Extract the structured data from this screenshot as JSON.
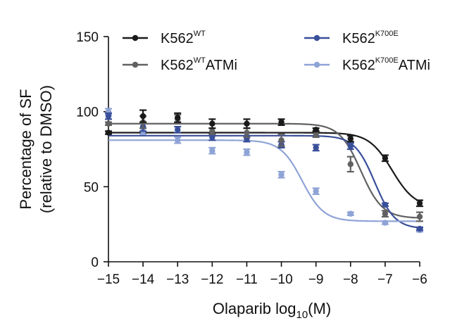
{
  "chart_data": {
    "type": "line",
    "subtype": "dose-response with data points and error bars",
    "title": "",
    "xlabel": {
      "main": "Olaparib log",
      "sub": "10",
      "tail": "(M)"
    },
    "ylabel": {
      "line1": "Percentage of SF",
      "line2": "(relative to DMSO)"
    },
    "xlim": [
      -15,
      -6
    ],
    "ylim": [
      0,
      150
    ],
    "x_ticks": [
      -15,
      -14,
      -13,
      -12,
      -11,
      -10,
      -9,
      -8,
      -7,
      -6
    ],
    "x_tick_labels": [
      "−15",
      "−14",
      "−13",
      "−12",
      "−11",
      "−10",
      "−9",
      "−8",
      "−7",
      "−6"
    ],
    "y_ticks": [
      0,
      50,
      100,
      150
    ],
    "y_tick_labels": [
      "0",
      "50",
      "100",
      "150"
    ],
    "legend_position": "top",
    "series": [
      {
        "name": "K562WT",
        "legend": {
          "base": "K562",
          "sup": "WT",
          "tail": ""
        },
        "color": "#1a1a1a",
        "points": [
          {
            "x": -15,
            "y": 86,
            "err": 1
          },
          {
            "x": -14,
            "y": 97,
            "err": 4
          },
          {
            "x": -13,
            "y": 96,
            "err": 3
          },
          {
            "x": -12,
            "y": 92,
            "err": 3
          },
          {
            "x": -11,
            "y": 92,
            "err": 3
          },
          {
            "x": -10,
            "y": 93,
            "err": 2
          },
          {
            "x": -9,
            "y": 88,
            "err": 1
          },
          {
            "x": -8,
            "y": 82,
            "err": 2
          },
          {
            "x": -7,
            "y": 69,
            "err": 2
          },
          {
            "x": -6,
            "y": 39,
            "err": 2
          }
        ],
        "fit": {
          "top": 86,
          "bottom": 36,
          "log_ic50": -6.8,
          "hill": 1.3
        }
      },
      {
        "name": "K562WT ATMi",
        "legend": {
          "base": "K562",
          "sup": "WT",
          "tail": "ATMi"
        },
        "color": "#616161",
        "points": [
          {
            "x": -15,
            "y": 92,
            "err": 1
          },
          {
            "x": -14,
            "y": 93,
            "err": 4
          },
          {
            "x": -13,
            "y": 95,
            "err": 3
          },
          {
            "x": -12,
            "y": 87,
            "err": 2
          },
          {
            "x": -11,
            "y": 86,
            "err": 3
          },
          {
            "x": -10,
            "y": 81,
            "err": 4
          },
          {
            "x": -9,
            "y": 85,
            "err": 2
          },
          {
            "x": -8,
            "y": 65,
            "err": 5
          },
          {
            "x": -7,
            "y": 32,
            "err": 2
          },
          {
            "x": -6,
            "y": 30,
            "err": 3
          }
        ],
        "fit": {
          "top": 92,
          "bottom": 29,
          "log_ic50": -7.7,
          "hill": 1.4
        }
      },
      {
        "name": "K562K700E",
        "legend": {
          "base": "K562",
          "sup": "K700E",
          "tail": ""
        },
        "color": "#3a4f9a",
        "points": [
          {
            "x": -15,
            "y": 97,
            "err": 2
          },
          {
            "x": -14,
            "y": 90,
            "err": 3
          },
          {
            "x": -13,
            "y": 88,
            "err": 2
          },
          {
            "x": -12,
            "y": 83,
            "err": 2
          },
          {
            "x": -11,
            "y": 82,
            "err": 2
          },
          {
            "x": -10,
            "y": 78,
            "err": 2
          },
          {
            "x": -9,
            "y": 76,
            "err": 2
          },
          {
            "x": -8,
            "y": 77,
            "err": 2
          },
          {
            "x": -7,
            "y": 38,
            "err": 1
          },
          {
            "x": -6,
            "y": 22,
            "err": 1
          }
        ],
        "fit": {
          "top": 84,
          "bottom": 22,
          "log_ic50": -7.3,
          "hill": 1.5
        }
      },
      {
        "name": "K562K700E ATMi",
        "legend": {
          "base": "K562",
          "sup": "K700E",
          "tail": "ATMi"
        },
        "color": "#8ea3d6",
        "points": [
          {
            "x": -15,
            "y": 100,
            "err": 2
          },
          {
            "x": -14,
            "y": 87,
            "err": 2
          },
          {
            "x": -13,
            "y": 81,
            "err": 2
          },
          {
            "x": -12,
            "y": 74,
            "err": 2
          },
          {
            "x": -11,
            "y": 73,
            "err": 2
          },
          {
            "x": -10,
            "y": 58,
            "err": 2
          },
          {
            "x": -9,
            "y": 47,
            "err": 2
          },
          {
            "x": -8,
            "y": 32,
            "err": 1
          },
          {
            "x": -7,
            "y": 26,
            "err": 1
          },
          {
            "x": -6,
            "y": 21,
            "err": 1
          }
        ],
        "fit": {
          "top": 81,
          "bottom": 27,
          "log_ic50": -9.4,
          "hill": 1.4
        }
      }
    ]
  }
}
